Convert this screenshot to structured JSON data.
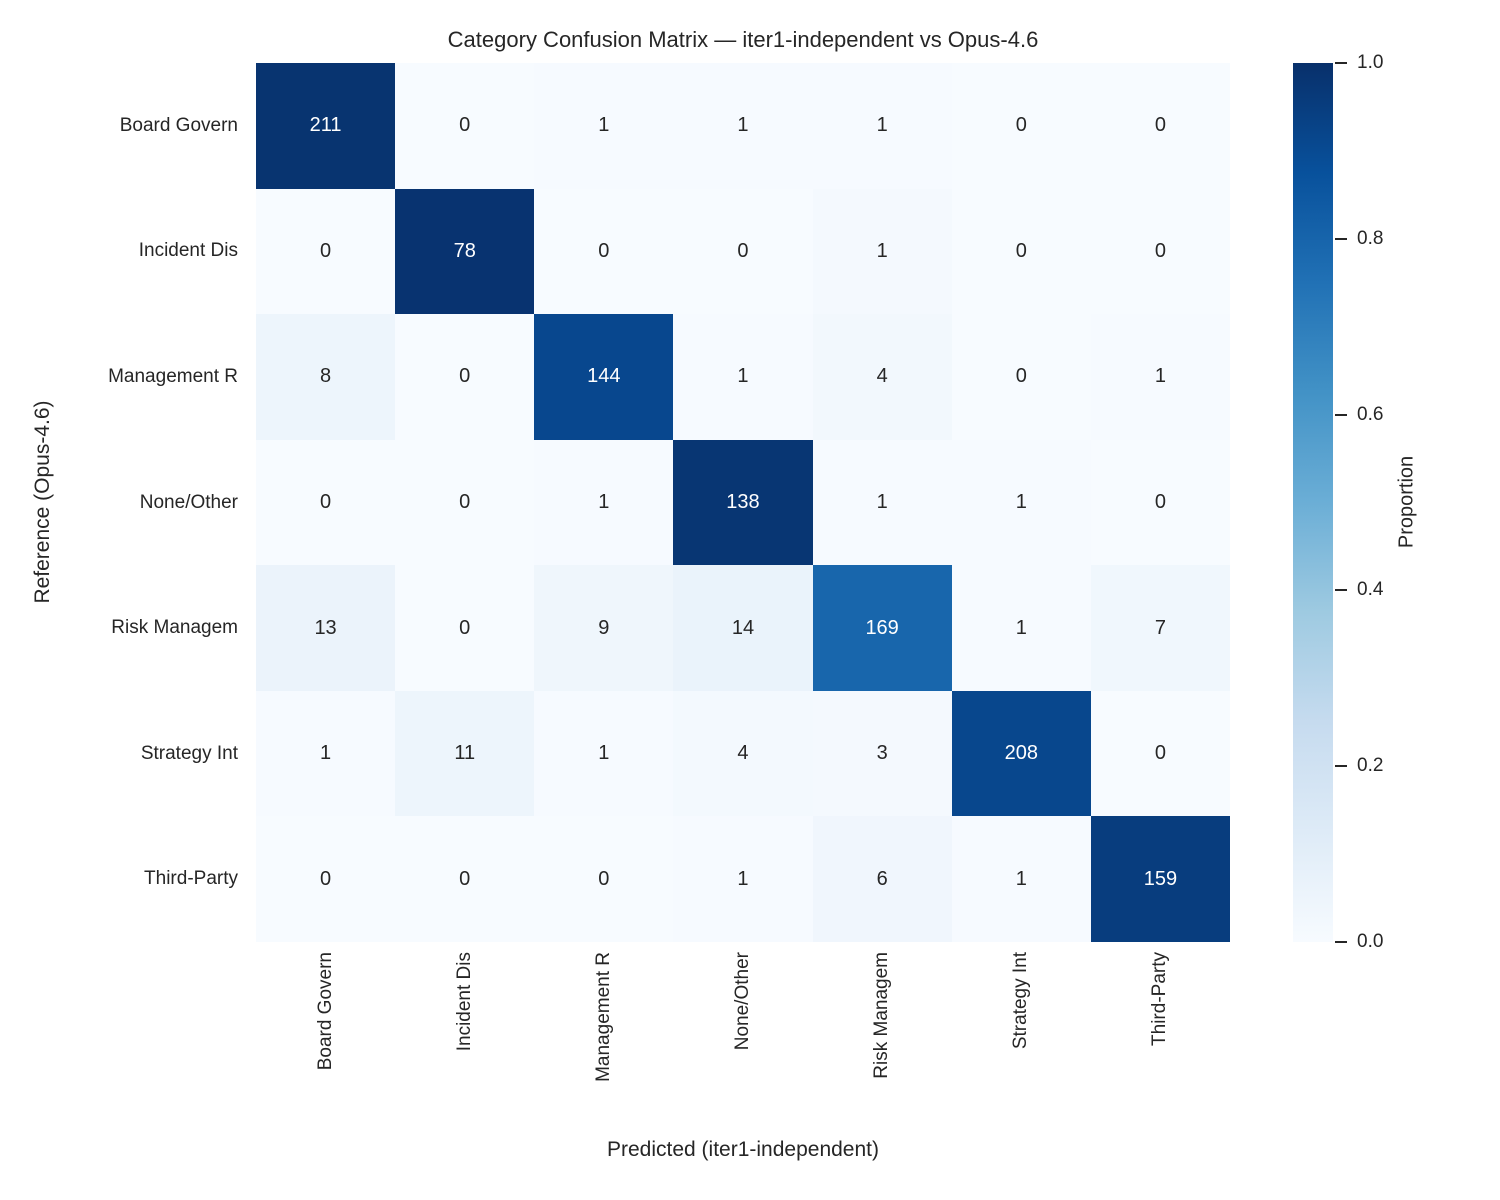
{
  "title": "Category Confusion Matrix — iter1-independent vs Opus-4.6",
  "xlabel": "Predicted (iter1-independent)",
  "ylabel": "Reference (Opus-4.6)",
  "colorbar": {
    "label": "Proportion",
    "ticks": [
      "1.0",
      "0.8",
      "0.6",
      "0.4",
      "0.2",
      "0.0"
    ]
  },
  "colors": {
    "text": "#262626",
    "cell_text_dark": "#262626",
    "cell_text_light": "#ffffff",
    "background": "#ffffff"
  },
  "chart_data": {
    "type": "heatmap",
    "title": "Category Confusion Matrix — iter1-independent vs Opus-4.6",
    "xlabel": "Predicted (iter1-independent)",
    "ylabel": "Reference (Opus-4.6)",
    "categories": [
      "Board Govern",
      "Incident Dis",
      "Management R",
      "None/Other",
      "Risk Managem",
      "Strategy Int",
      "Third-Party"
    ],
    "rows": [
      [
        211,
        0,
        1,
        1,
        1,
        0,
        0
      ],
      [
        0,
        78,
        0,
        0,
        1,
        0,
        0
      ],
      [
        8,
        0,
        144,
        1,
        4,
        0,
        1
      ],
      [
        0,
        0,
        1,
        138,
        1,
        1,
        0
      ],
      [
        13,
        0,
        9,
        14,
        169,
        1,
        7
      ],
      [
        1,
        11,
        1,
        4,
        3,
        208,
        0
      ],
      [
        0,
        0,
        0,
        1,
        6,
        1,
        159
      ]
    ],
    "normalization": "row",
    "colormap": "Blues",
    "colormap_stops": [
      [
        0.0,
        247,
        251,
        255
      ],
      [
        0.125,
        222,
        235,
        247
      ],
      [
        0.25,
        198,
        219,
        239
      ],
      [
        0.375,
        158,
        202,
        225
      ],
      [
        0.5,
        107,
        174,
        214
      ],
      [
        0.625,
        66,
        146,
        198
      ],
      [
        0.75,
        33,
        113,
        181
      ],
      [
        0.875,
        8,
        81,
        156
      ],
      [
        1.0,
        8,
        48,
        107
      ]
    ],
    "colorbar_label": "Proportion",
    "colorbar_range": [
      0.0,
      1.0
    ],
    "legend_position": "right",
    "grid": false
  }
}
